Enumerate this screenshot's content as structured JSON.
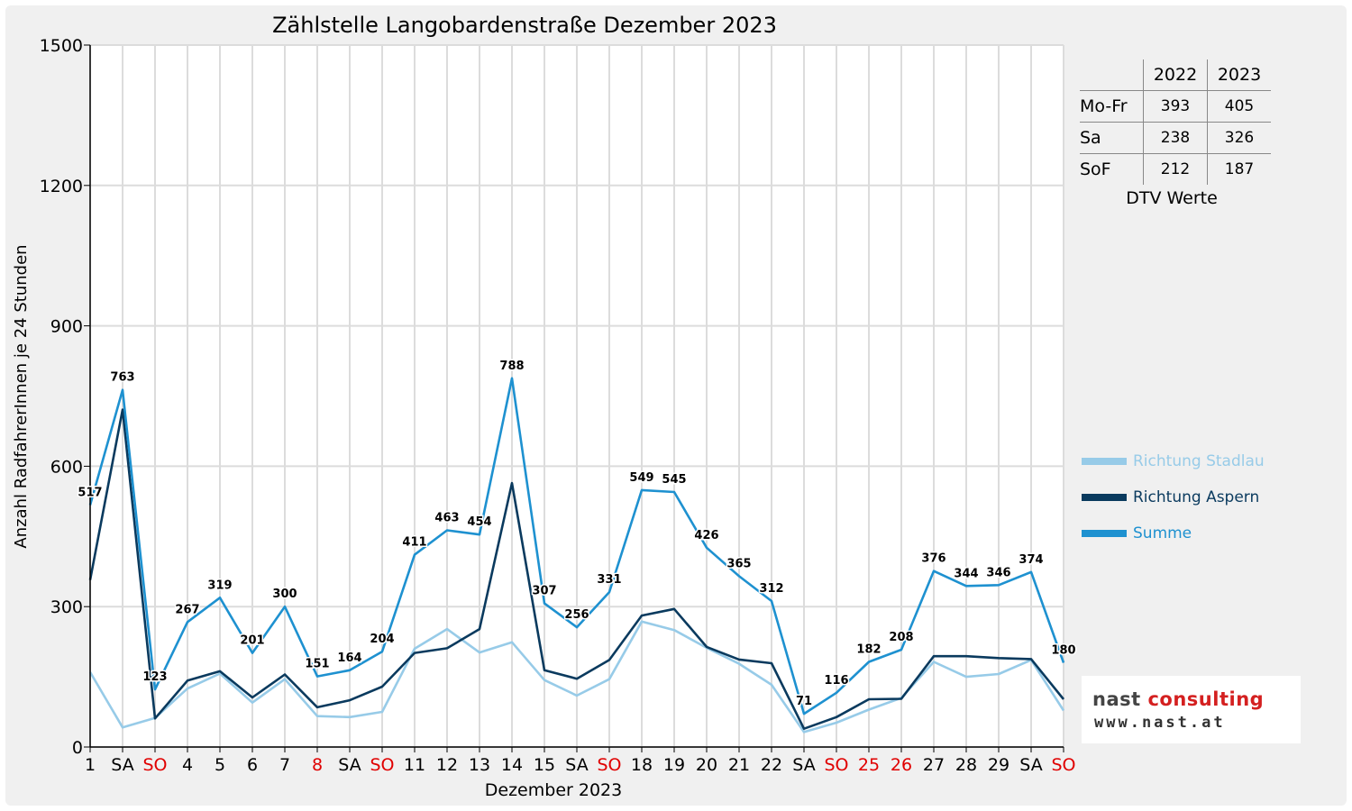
{
  "chart_data": {
    "type": "line",
    "title": "Zählstelle Langobardenstraße Dezember 2023",
    "xlabel": "Dezember 2023",
    "ylabel": "Anzahl RadfahrerInnen je 24 Stunden",
    "ylim": [
      0,
      1500
    ],
    "yticks": [
      "0",
      "300",
      "600",
      "900",
      "1200",
      "1500"
    ],
    "grid": true,
    "legend_position": "right",
    "categories": [
      "1",
      "SA",
      "SO",
      "4",
      "5",
      "6",
      "7",
      "8",
      "SA",
      "SO",
      "11",
      "12",
      "13",
      "14",
      "15",
      "SA",
      "SO",
      "18",
      "19",
      "20",
      "21",
      "22",
      "SA",
      "SO",
      "25",
      "26",
      "27",
      "28",
      "29",
      "SA",
      "SO"
    ],
    "red_categories": [
      2,
      7,
      9,
      16,
      23,
      24,
      25,
      30
    ],
    "series": [
      {
        "name": "Richtung Stadlau",
        "color": "#97cbe8",
        "values": [
          160,
          42,
          62,
          125,
          157,
          95,
          145,
          66,
          64,
          75,
          210,
          252,
          202,
          224,
          143,
          110,
          145,
          268,
          250,
          212,
          178,
          133,
          32,
          52,
          80,
          105,
          182,
          150,
          156,
          186,
          78
        ]
      },
      {
        "name": "Richtung Aspern",
        "color": "#0a3a5e",
        "values": [
          357,
          721,
          61,
          142,
          162,
          106,
          155,
          85,
          100,
          129,
          201,
          211,
          252,
          564,
          164,
          146,
          186,
          281,
          295,
          214,
          187,
          179,
          39,
          64,
          102,
          103,
          194,
          194,
          190,
          188,
          102
        ]
      },
      {
        "name": "Summe",
        "color": "#1e91d0",
        "values": [
          517,
          763,
          123,
          267,
          319,
          201,
          300,
          151,
          164,
          204,
          411,
          463,
          454,
          788,
          307,
          256,
          331,
          549,
          545,
          426,
          365,
          312,
          71,
          116,
          182,
          208,
          376,
          344,
          346,
          374,
          180
        ]
      }
    ]
  },
  "dtv_table": {
    "headers": [
      "2022",
      "2023"
    ],
    "rows": [
      {
        "label": "Mo-Fr",
        "v2022": "393",
        "v2023": "405"
      },
      {
        "label": "Sa",
        "v2022": "238",
        "v2023": "326"
      },
      {
        "label": "SoF",
        "v2022": "212",
        "v2023": "187"
      }
    ],
    "caption": "DTV Werte"
  },
  "legend": {
    "items": [
      "Richtung Stadlau",
      "Richtung Aspern",
      "Summe"
    ]
  },
  "logo": {
    "name_part1": "nast ",
    "name_part2": "consulting",
    "url": "www.nast.at"
  }
}
